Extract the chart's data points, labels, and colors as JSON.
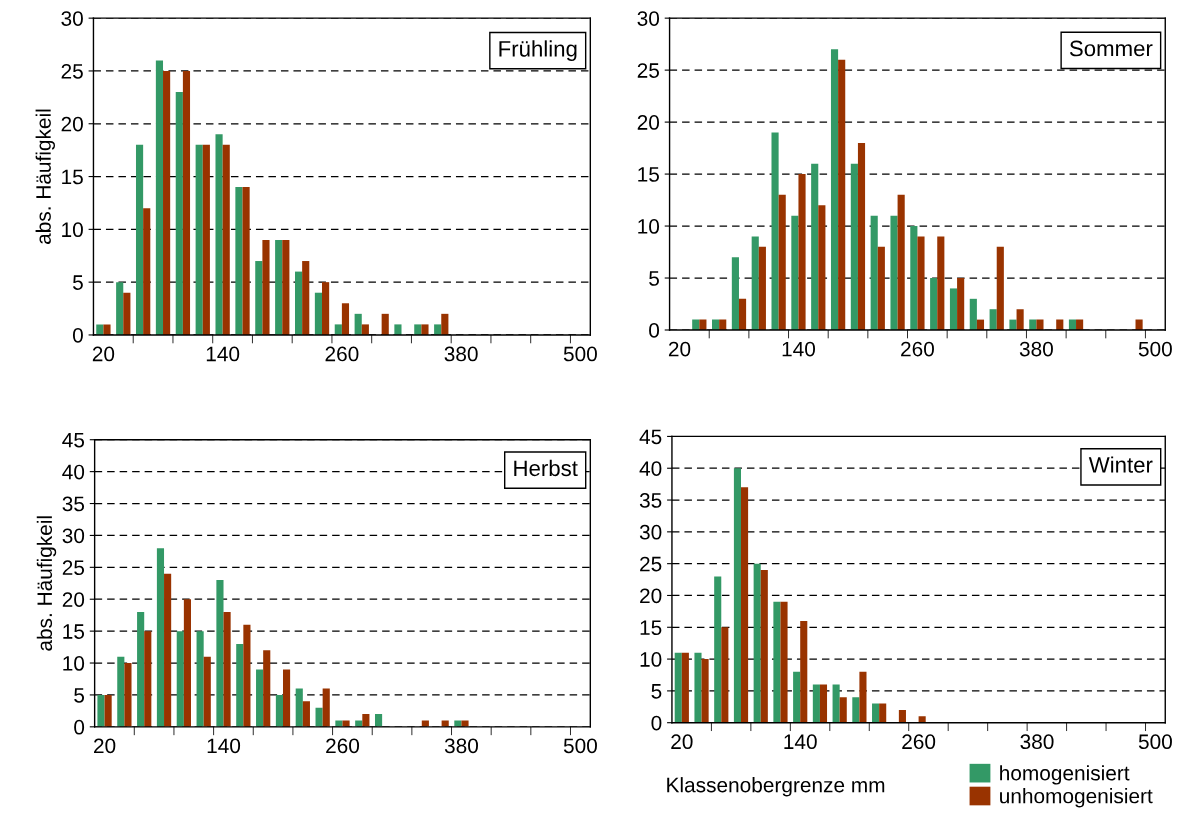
{
  "chart_data": [
    {
      "type": "bar",
      "title": "Frühling",
      "ylabel": "abs. Häufigkeil",
      "categories": [
        "20",
        null,
        null,
        null,
        null,
        null,
        "140",
        null,
        null,
        null,
        null,
        null,
        "260",
        null,
        null,
        null,
        null,
        null,
        "380",
        null,
        null,
        null,
        null,
        null,
        "500"
      ],
      "ylim": [
        0,
        30
      ],
      "yticks": [
        0,
        5,
        10,
        15,
        20,
        25,
        30
      ],
      "grid": "y",
      "legend": false,
      "series": [
        {
          "color": "#339966",
          "values": [
            1,
            5,
            18,
            26,
            23,
            18,
            19,
            14,
            7,
            9,
            6,
            4,
            1,
            2,
            0,
            1,
            1,
            1,
            0,
            0,
            0,
            0,
            0,
            0,
            0
          ]
        },
        {
          "color": "#993300",
          "values": [
            1,
            4,
            12,
            25,
            25,
            18,
            18,
            14,
            9,
            9,
            7,
            5,
            3,
            1,
            2,
            0,
            1,
            2,
            0,
            0,
            0,
            0,
            0,
            0,
            0
          ]
        }
      ]
    },
    {
      "type": "bar",
      "title": "Sommer",
      "categories": [
        "20",
        null,
        null,
        null,
        null,
        null,
        "140",
        null,
        null,
        null,
        null,
        null,
        "260",
        null,
        null,
        null,
        null,
        null,
        "380",
        null,
        null,
        null,
        null,
        null,
        "500"
      ],
      "ylim": [
        0,
        30
      ],
      "yticks": [
        0,
        5,
        10,
        15,
        20,
        25,
        30
      ],
      "grid": "y",
      "legend": false,
      "series": [
        {
          "color": "#339966",
          "values": [
            0,
            1,
            1,
            7,
            9,
            19,
            11,
            16,
            27,
            16,
            11,
            11,
            10,
            5,
            4,
            3,
            2,
            1,
            1,
            0,
            1,
            0,
            0,
            0,
            0
          ]
        },
        {
          "color": "#993300",
          "values": [
            0,
            1,
            1,
            3,
            8,
            13,
            15,
            12,
            26,
            18,
            8,
            13,
            9,
            9,
            5,
            1,
            8,
            2,
            1,
            1,
            1,
            0,
            0,
            1,
            0
          ]
        }
      ]
    },
    {
      "type": "bar",
      "title": "Herbst",
      "ylabel": "abs. Häufigkeil",
      "categories": [
        "20",
        null,
        null,
        null,
        null,
        null,
        "140",
        null,
        null,
        null,
        null,
        null,
        "260",
        null,
        null,
        null,
        null,
        null,
        "380",
        null,
        null,
        null,
        null,
        null,
        "500"
      ],
      "ylim": [
        0,
        45
      ],
      "yticks": [
        0,
        5,
        10,
        15,
        20,
        25,
        30,
        35,
        40,
        45
      ],
      "grid": "y",
      "legend": false,
      "series": [
        {
          "color": "#339966",
          "values": [
            5,
            11,
            18,
            28,
            15,
            15,
            23,
            13,
            9,
            5,
            6,
            3,
            1,
            1,
            2,
            0,
            0,
            0,
            1,
            0,
            0,
            0,
            0,
            0,
            0
          ]
        },
        {
          "color": "#993300",
          "values": [
            5,
            10,
            15,
            24,
            20,
            11,
            18,
            16,
            12,
            9,
            4,
            6,
            1,
            2,
            0,
            0,
            1,
            1,
            1,
            0,
            0,
            0,
            0,
            0,
            0
          ]
        }
      ]
    },
    {
      "type": "bar",
      "title": "Winter",
      "xlabel": "Klassenobergrenze mm",
      "categories": [
        "20",
        null,
        null,
        null,
        null,
        null,
        "140",
        null,
        null,
        null,
        null,
        null,
        "260",
        null,
        null,
        null,
        null,
        null,
        "380",
        null,
        null,
        null,
        null,
        null,
        "500"
      ],
      "ylim": [
        0,
        45
      ],
      "yticks": [
        0,
        5,
        10,
        15,
        20,
        25,
        30,
        35,
        40,
        45
      ],
      "grid": "y",
      "legend": "bottom right",
      "series": [
        {
          "name": "homogenisiert",
          "color": "#339966",
          "values": [
            11,
            11,
            23,
            40,
            25,
            19,
            8,
            6,
            6,
            4,
            3,
            0,
            0,
            0,
            0,
            0,
            0,
            0,
            0,
            0,
            0,
            0,
            0,
            0,
            0
          ]
        },
        {
          "name": "unhomogenisiert",
          "color": "#993300",
          "values": [
            11,
            10,
            15,
            37,
            24,
            19,
            16,
            6,
            4,
            8,
            3,
            2,
            1,
            0,
            0,
            0,
            0,
            0,
            0,
            0,
            0,
            0,
            0,
            0,
            0
          ]
        }
      ]
    }
  ]
}
